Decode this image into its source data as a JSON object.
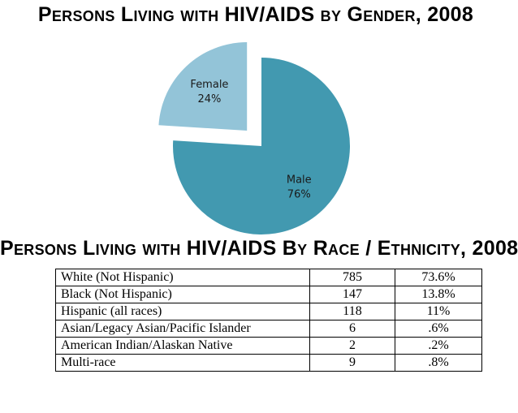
{
  "pie_title": "Persons Living with HIV/AIDS by Gender, 2008",
  "table_title": "Persons Living with HIV/AIDS By Race / Ethnicity, 2008",
  "colors": {
    "female": "#93c4d8",
    "male": "#4299b0"
  },
  "chart_data": [
    {
      "type": "pie",
      "title": "Persons Living with HIV/AIDS by Gender, 2008",
      "slices": [
        {
          "label": "Female",
          "value": 24,
          "display": "24%",
          "color": "#93c4d8",
          "exploded": true
        },
        {
          "label": "Male",
          "value": 76,
          "display": "76%",
          "color": "#4299b0",
          "exploded": false
        }
      ]
    },
    {
      "type": "table",
      "title": "Persons Living with HIV/AIDS By Race / Ethnicity, 2008",
      "rows": [
        {
          "name": "White (Not Hispanic)",
          "count": "785",
          "pct": "73.6%"
        },
        {
          "name": "Black (Not Hispanic)",
          "count": "147",
          "pct": "13.8%"
        },
        {
          "name": "Hispanic (all races)",
          "count": "118",
          "pct": "11%"
        },
        {
          "name": "Asian/Legacy Asian/Pacific Islander",
          "count": "6",
          "pct": ".6%"
        },
        {
          "name": "American Indian/Alaskan Native",
          "count": "2",
          "pct": ".2%"
        },
        {
          "name": "Multi-race",
          "count": "9",
          "pct": ".8%"
        }
      ]
    }
  ]
}
